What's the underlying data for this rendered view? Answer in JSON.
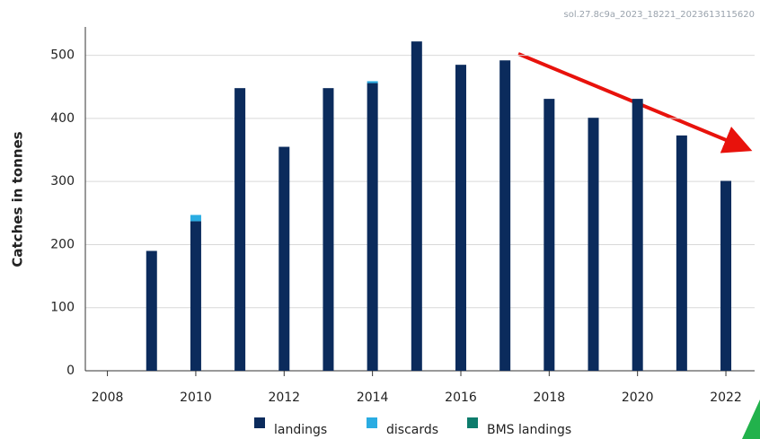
{
  "chart_data": {
    "type": "bar",
    "stacked": true,
    "note": "sol.27.8c9a_2023_18221_2023613115620",
    "y_label": "Catches in tonnes",
    "x": [
      2009,
      2010,
      2011,
      2012,
      2013,
      2014,
      2015,
      2016,
      2017,
      2018,
      2019,
      2020,
      2021,
      2022
    ],
    "series": [
      {
        "name": "landings",
        "color": "#0b2b5c",
        "values": [
          190,
          237,
          448,
          355,
          448,
          456,
          522,
          485,
          492,
          431,
          401,
          431,
          373,
          301
        ]
      },
      {
        "name": "discards",
        "color": "#2aace2",
        "values": [
          0,
          10,
          0,
          0,
          0,
          3,
          0,
          0,
          0,
          0,
          0,
          0,
          0,
          0
        ]
      },
      {
        "name": "BMS landings",
        "color": "#0d7c6c",
        "values": [
          0,
          0,
          0,
          0,
          0,
          0,
          0,
          0,
          0,
          0,
          0,
          0,
          0,
          0
        ]
      }
    ],
    "xlim": [
      2007.5,
      2022.65
    ],
    "xticks": [
      2008,
      2010,
      2012,
      2014,
      2016,
      2018,
      2020,
      2022
    ],
    "ylim": [
      0,
      545
    ],
    "yticks": [
      0,
      100,
      200,
      300,
      400,
      500
    ],
    "grid": true
  }
}
